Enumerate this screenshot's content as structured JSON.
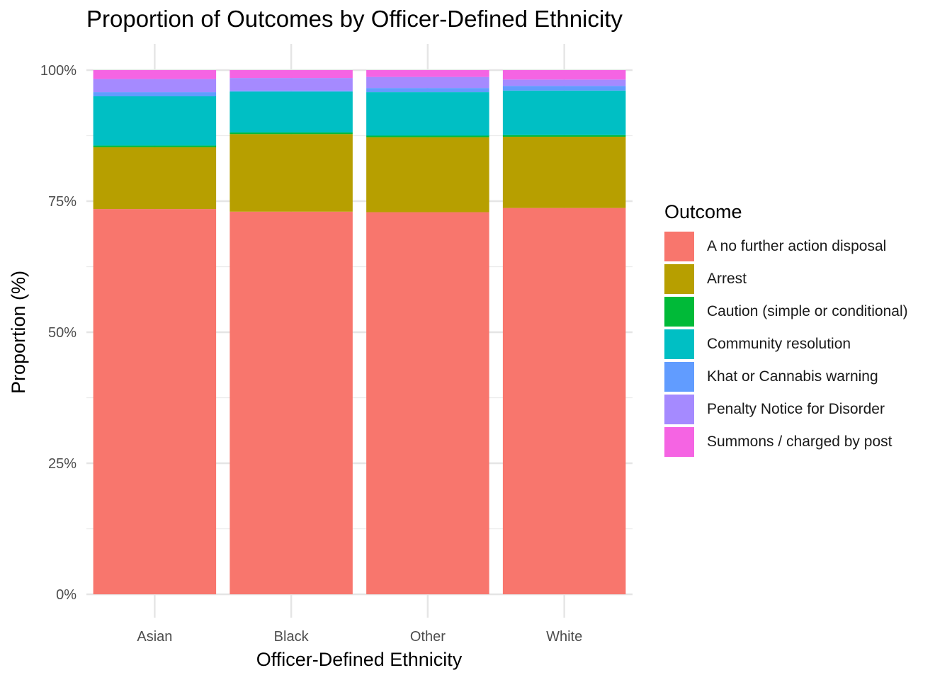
{
  "chart_data": {
    "type": "bar",
    "stacked": true,
    "title": "Proportion of Outcomes by Officer-Defined Ethnicity",
    "xlabel": "Officer-Defined Ethnicity",
    "ylabel": "Proportion (%)",
    "ylim": [
      0,
      100
    ],
    "yticks": [
      "0%",
      "25%",
      "50%",
      "75%",
      "100%"
    ],
    "grid": true,
    "legend": {
      "title": "Outcome",
      "position": "right"
    },
    "categories": [
      "Asian",
      "Black",
      "Other",
      "White"
    ],
    "series": [
      {
        "name": "A no further action disposal",
        "color": "#F8766D",
        "values": [
          73.5,
          73.0,
          72.9,
          73.7
        ]
      },
      {
        "name": "Arrest",
        "color": "#B79F00",
        "values": [
          11.8,
          14.8,
          14.3,
          13.6
        ]
      },
      {
        "name": "Caution (simple or conditional)",
        "color": "#00BA38",
        "values": [
          0.3,
          0.3,
          0.3,
          0.3
        ]
      },
      {
        "name": "Community resolution",
        "color": "#00BFC4",
        "values": [
          9.4,
          7.8,
          8.3,
          8.5
        ]
      },
      {
        "name": "Khat or Cannabis warning",
        "color": "#619CFF",
        "values": [
          0.8,
          0.2,
          0.8,
          0.9
        ]
      },
      {
        "name": "Penalty Notice for Disorder",
        "color": "#A58AFF",
        "values": [
          2.5,
          2.4,
          2.1,
          1.2
        ]
      },
      {
        "name": "Summons / charged by post",
        "color": "#F564E3",
        "values": [
          1.7,
          1.5,
          1.3,
          1.8
        ]
      }
    ]
  }
}
